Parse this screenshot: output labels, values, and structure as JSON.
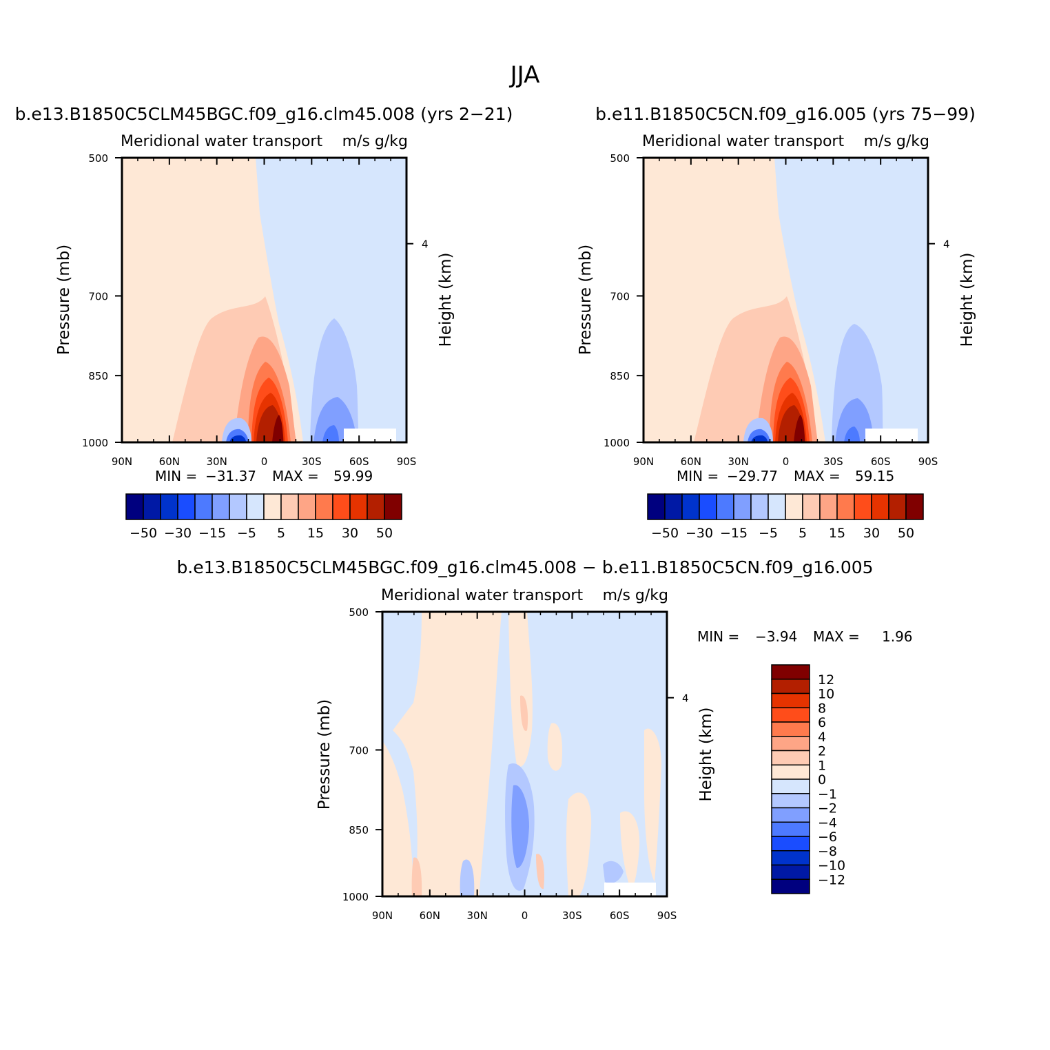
{
  "figure": {
    "title": "JJA"
  },
  "colors": {
    "neg": [
      "#00007f",
      "#0019a5",
      "#0033cc",
      "#1a4dff",
      "#4d7aff",
      "#809fff",
      "#b3c8ff",
      "#d6e6fd"
    ],
    "pos": [
      "#fee8d6",
      "#fecbb4",
      "#fea586",
      "#ff7a4d",
      "#ff4d1a",
      "#e63300",
      "#b31f00",
      "#800000"
    ]
  },
  "chart_data": [
    {
      "type": "heatmap",
      "title": "b.e13.B1850C5CLM45BGC.f09_g16.clm45.008 (yrs 2-21)",
      "subtitle_left": "Meridional water transport",
      "subtitle_right": "m/s g/kg",
      "ylabel": "Pressure (mb)",
      "y2label": "Height (km)",
      "y_ticks": [
        "500",
        "700",
        "850",
        "1000"
      ],
      "y2_ticks": [
        "4"
      ],
      "x_ticks": [
        "90N",
        "60N",
        "30N",
        "0",
        "30S",
        "60S",
        "90S"
      ],
      "x_range": [
        90,
        -90
      ],
      "y_range": [
        500,
        1000
      ],
      "stats_min_label": "MIN =",
      "min": "-31.37",
      "stats_max_label": "MAX =",
      "max": "59.99",
      "colorbar": {
        "orientation": "horizontal",
        "labels": [
          "-50",
          "-30",
          "-15",
          "-5",
          "5",
          "15",
          "30",
          "50"
        ]
      }
    },
    {
      "type": "heatmap",
      "title": "b.e11.B1850C5CN.f09_g16.005 (yrs 75-99)",
      "subtitle_left": "Meridional water transport",
      "subtitle_right": "m/s g/kg",
      "ylabel": "Pressure (mb)",
      "y2label": "Height (km)",
      "y_ticks": [
        "500",
        "700",
        "850",
        "1000"
      ],
      "y2_ticks": [
        "4"
      ],
      "x_ticks": [
        "90N",
        "60N",
        "30N",
        "0",
        "30S",
        "60S",
        "90S"
      ],
      "x_range": [
        90,
        -90
      ],
      "y_range": [
        500,
        1000
      ],
      "stats_min_label": "MIN =",
      "min": "-29.77",
      "stats_max_label": "MAX =",
      "max": "59.15",
      "colorbar": {
        "orientation": "horizontal",
        "labels": [
          "-50",
          "-30",
          "-15",
          "-5",
          "5",
          "15",
          "30",
          "50"
        ]
      }
    },
    {
      "type": "heatmap",
      "title": "b.e13.B1850C5CLM45BGC.f09_g16.clm45.008 - b.e11.B1850C5CN.f09_g16.005",
      "subtitle_left": "Meridional water transport",
      "subtitle_right": "m/s g/kg",
      "ylabel": "Pressure (mb)",
      "y2label": "Height (km)",
      "y_ticks": [
        "500",
        "700",
        "850",
        "1000"
      ],
      "y2_ticks": [
        "4"
      ],
      "x_ticks": [
        "90N",
        "60N",
        "30N",
        "0",
        "30S",
        "60S",
        "90S"
      ],
      "x_range": [
        90,
        -90
      ],
      "y_range": [
        500,
        1000
      ],
      "stats_min_label": "MIN =",
      "min": "-3.94",
      "stats_max_label": "MAX =",
      "max": "1.96",
      "colorbar": {
        "orientation": "vertical",
        "labels": [
          "12",
          "10",
          "8",
          "6",
          "4",
          "2",
          "1",
          "0",
          "-1",
          "-2",
          "-4",
          "-6",
          "-8",
          "-10",
          "-12"
        ]
      }
    }
  ]
}
